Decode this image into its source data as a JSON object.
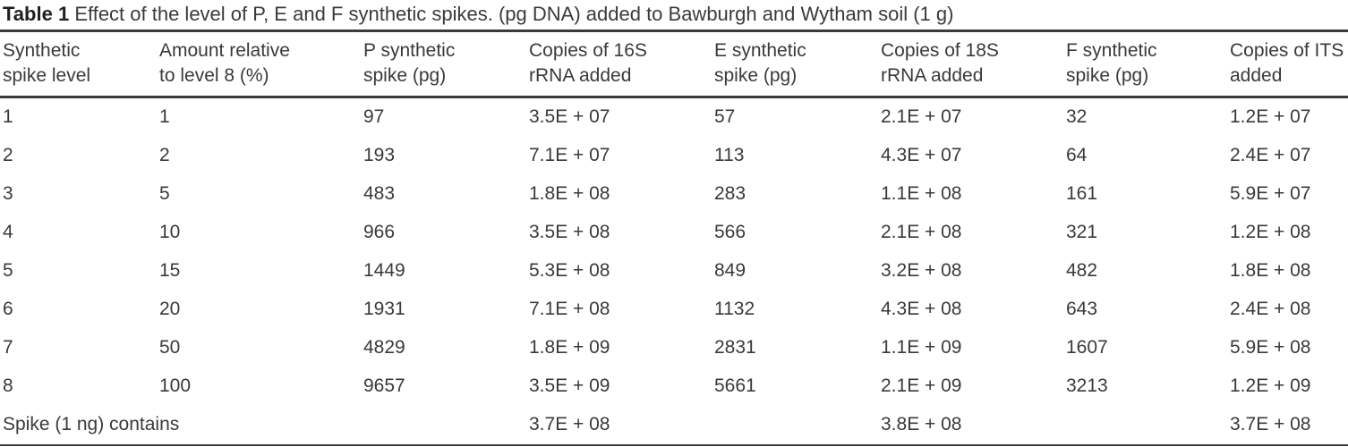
{
  "colors": {
    "background": "#ffffff",
    "text": "#3a3a3a",
    "caption_label": "#1f1f1f",
    "rule": "#3a3a3a"
  },
  "caption": {
    "label": "Table 1",
    "text": "Effect of the level of P, E and F synthetic spikes. (pg DNA) added to Bawburgh and Wytham soil (1 g)"
  },
  "chart_data": {
    "type": "table",
    "columns": [
      "Synthetic\nspike level",
      "Amount relative\nto level 8 (%)",
      "P synthetic\nspike (pg)",
      "Copies of 16S\nrRNA added",
      "E synthetic\nspike (pg)",
      "Copies of 18S\nrRNA added",
      "F synthetic\nspike (pg)",
      "Copies of ITS\nadded"
    ],
    "rows": [
      [
        "1",
        "1",
        "97",
        "3.5E + 07",
        "57",
        "2.1E + 07",
        "32",
        "1.2E + 07"
      ],
      [
        "2",
        "2",
        "193",
        "7.1E + 07",
        "113",
        "4.3E + 07",
        "64",
        "2.4E + 07"
      ],
      [
        "3",
        "5",
        "483",
        "1.8E + 08",
        "283",
        "1.1E + 08",
        "161",
        "5.9E + 07"
      ],
      [
        "4",
        "10",
        "966",
        "3.5E + 08",
        "566",
        "2.1E + 08",
        "321",
        "1.2E + 08"
      ],
      [
        "5",
        "15",
        "1449",
        "5.3E + 08",
        "849",
        "3.2E + 08",
        "482",
        "1.8E + 08"
      ],
      [
        "6",
        "20",
        "1931",
        "7.1E + 08",
        "1132",
        "4.3E + 08",
        "643",
        "2.4E + 08"
      ],
      [
        "7",
        "50",
        "4829",
        "1.8E + 09",
        "2831",
        "1.1E + 09",
        "1607",
        "5.9E + 08"
      ],
      [
        "8",
        "100",
        "9657",
        "3.5E + 09",
        "5661",
        "2.1E + 09",
        "3213",
        "1.2E + 09"
      ]
    ],
    "footer_row": {
      "label": "Spike (1 ng) contains",
      "copies_16s": "3.7E + 08",
      "copies_18s": "3.8E + 08",
      "copies_its": "3.7E + 08"
    }
  }
}
